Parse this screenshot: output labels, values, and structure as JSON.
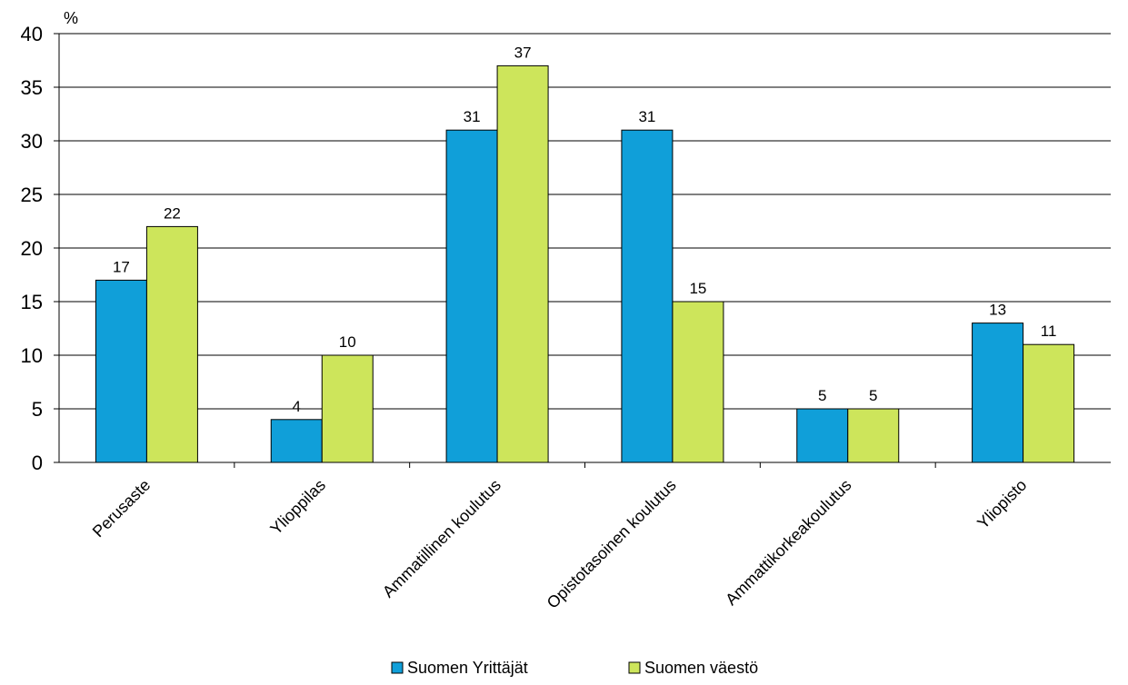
{
  "chart_data": {
    "type": "bar",
    "unit_label": "%",
    "categories": [
      "Perusaste",
      "Ylioppilas",
      "Ammatillinen koulutus",
      "Opistotasoinen koulutus",
      "Ammattikorkeakoulutus",
      "Yliopisto"
    ],
    "series": [
      {
        "name": "Suomen Yrittäjät",
        "color": "#109fd9",
        "values": [
          17,
          4,
          31,
          31,
          5,
          13
        ]
      },
      {
        "name": "Suomen väestö",
        "color": "#cde55b",
        "values": [
          22,
          10,
          37,
          15,
          5,
          11
        ]
      }
    ],
    "ylim": [
      0,
      40
    ],
    "yticks": [
      0,
      5,
      10,
      15,
      20,
      25,
      30,
      35,
      40
    ],
    "grid": true,
    "legend_position": "bottom"
  }
}
